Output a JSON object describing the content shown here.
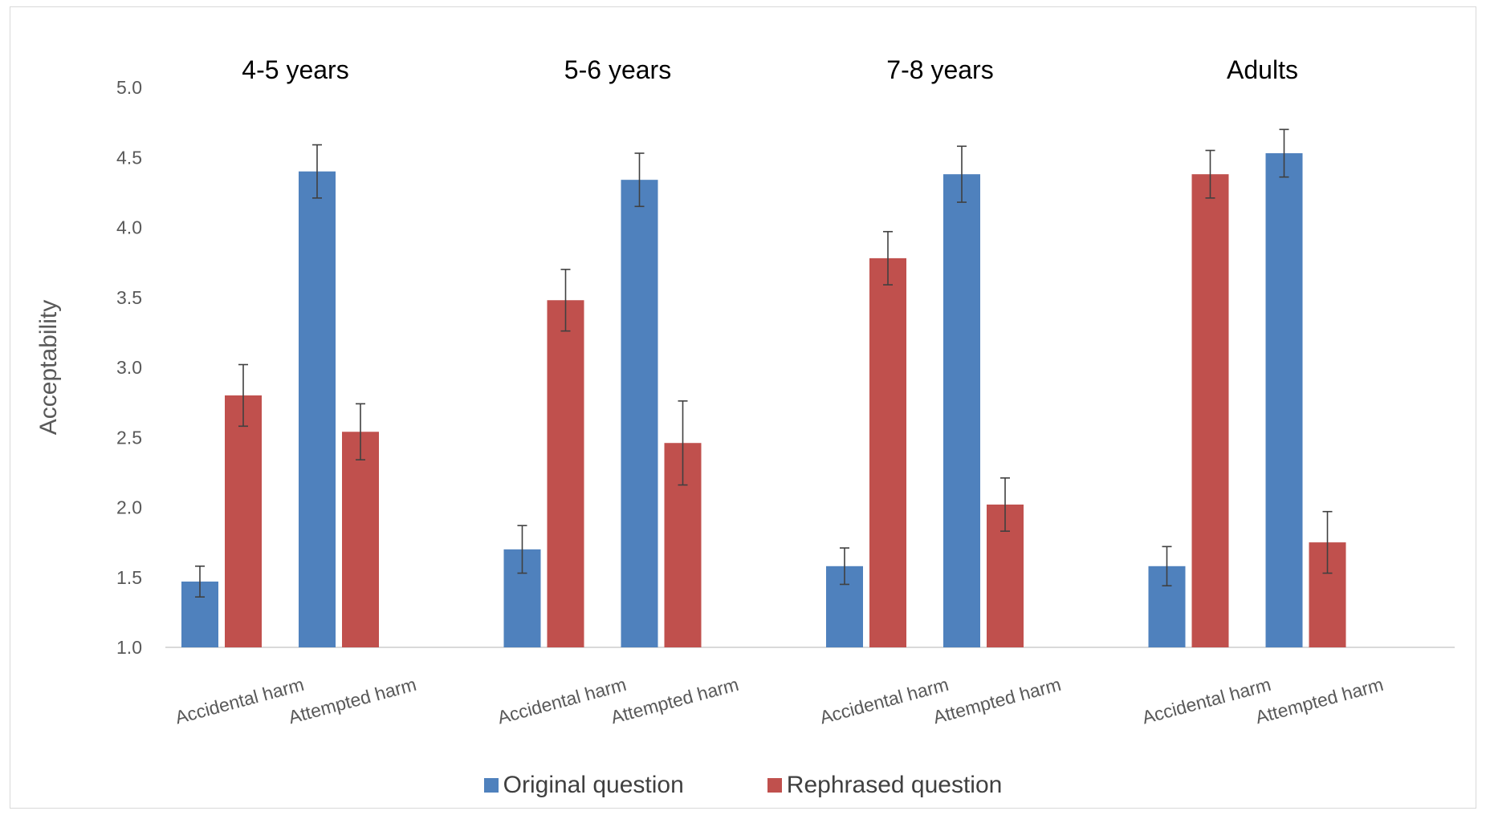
{
  "chart_data": {
    "type": "bar",
    "ylabel": "Acceptability",
    "ylim": [
      1.0,
      5.0
    ],
    "yticks": [
      "1.0",
      "1.5",
      "2.0",
      "2.5",
      "3.0",
      "3.5",
      "4.0",
      "4.5",
      "5.0"
    ],
    "grid": false,
    "legend_position": "bottom",
    "colors": {
      "original": "#4f81bd",
      "rephrased": "#c0504d",
      "errorbar": "#404040",
      "axis": "#d9d9d9",
      "text": "#595959"
    },
    "groups": [
      {
        "title": "4-5 years",
        "conditions": [
          {
            "label": "Accidental harm",
            "original": {
              "value": 1.47,
              "err": 0.11
            },
            "rephrased": {
              "value": 2.8,
              "err": 0.22
            }
          },
          {
            "label": "Attempted harm",
            "original": {
              "value": 4.4,
              "err": 0.19
            },
            "rephrased": {
              "value": 2.54,
              "err": 0.2
            }
          }
        ]
      },
      {
        "title": "5-6 years",
        "conditions": [
          {
            "label": "Accidental harm",
            "original": {
              "value": 1.7,
              "err": 0.17
            },
            "rephrased": {
              "value": 3.48,
              "err": 0.22
            }
          },
          {
            "label": "Attempted harm",
            "original": {
              "value": 4.34,
              "err": 0.19
            },
            "rephrased": {
              "value": 2.46,
              "err": 0.3
            }
          }
        ]
      },
      {
        "title": "7-8 years",
        "conditions": [
          {
            "label": "Accidental harm",
            "original": {
              "value": 1.58,
              "err": 0.13
            },
            "rephrased": {
              "value": 3.78,
              "err": 0.19
            }
          },
          {
            "label": "Attempted harm",
            "original": {
              "value": 4.38,
              "err": 0.2
            },
            "rephrased": {
              "value": 2.02,
              "err": 0.19
            }
          }
        ]
      },
      {
        "title": "Adults",
        "conditions": [
          {
            "label": "Accidental harm",
            "original": {
              "value": 1.58,
              "err": 0.14
            },
            "rephrased": {
              "value": 4.38,
              "err": 0.17
            }
          },
          {
            "label": "Attempted harm",
            "original": {
              "value": 4.53,
              "err": 0.17
            },
            "rephrased": {
              "value": 1.75,
              "err": 0.22
            }
          }
        ]
      }
    ],
    "series": [
      {
        "key": "original",
        "name": "Original question"
      },
      {
        "key": "rephrased",
        "name": "Rephrased question"
      }
    ]
  }
}
